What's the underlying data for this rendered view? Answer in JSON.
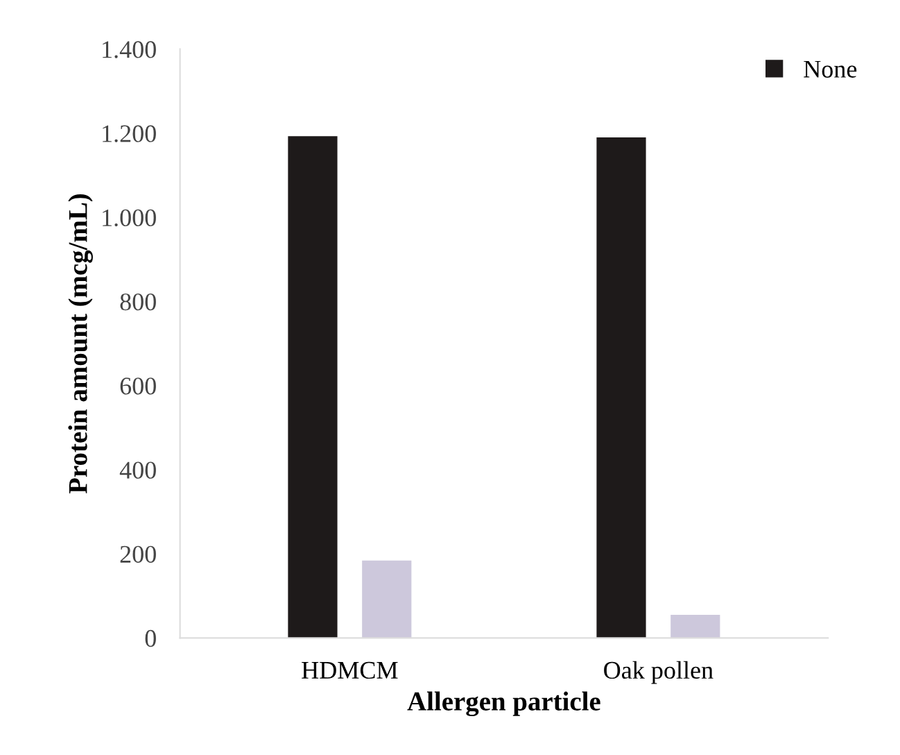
{
  "chart_data": {
    "type": "bar",
    "xlabel": "Allergen particle",
    "ylabel": "Protein amount (mcg/mL)",
    "categories": [
      "HDMCM",
      "Oak pollen"
    ],
    "series": [
      {
        "name": "None",
        "color": "#1e1a1a",
        "values": [
          1193,
          1190
        ]
      },
      {
        "color": "#cdc8dc",
        "values": [
          184,
          55
        ]
      }
    ],
    "ylim": [
      0,
      1400
    ],
    "yticks": [
      0,
      200,
      400,
      600,
      800,
      {
        "value": 1000,
        "label": "1.000"
      },
      {
        "value": 1200,
        "label": "1.200"
      },
      {
        "value": 1400,
        "label": "1.400"
      }
    ],
    "grid": false,
    "legend": "top right"
  }
}
